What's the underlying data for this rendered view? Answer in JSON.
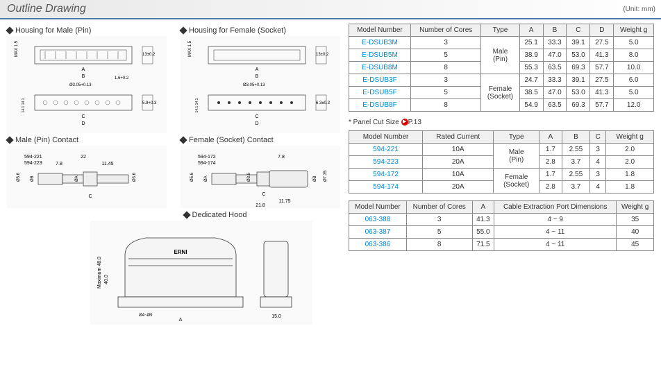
{
  "header": {
    "title": "Outline Drawing",
    "unit": "(Unit: mm)"
  },
  "labels": {
    "housingMale": "Housing for Male (Pin)",
    "housingFemale": "Housing for Female (Socket)",
    "maleContact": "Male (Pin) Contact",
    "femaleContact": "Female (Socket) Contact",
    "hood": "Dedicated Hood"
  },
  "contactRefs": {
    "male": "594-221\n594-223",
    "female": "594-172\n594-174"
  },
  "footnote": {
    "prefix": "* Panel Cut Size ",
    "page": "P.13"
  },
  "table1": {
    "headers": [
      "Model Number",
      "Number of Cores",
      "Type",
      "A",
      "B",
      "C",
      "D",
      "Weight g"
    ],
    "rows": [
      {
        "m": "E-DSUB3M",
        "c": "3",
        "t": "",
        "a": "25.1",
        "b": "33.3",
        "cc": "39.1",
        "d": "27.5",
        "w": "5.0"
      },
      {
        "m": "E-DSUB5M",
        "c": "5",
        "t": "Male (Pin)",
        "a": "38.9",
        "b": "47.0",
        "cc": "53.0",
        "d": "41.3",
        "w": "8.0"
      },
      {
        "m": "E-DSUB8M",
        "c": "8",
        "t": "",
        "a": "55.3",
        "b": "63.5",
        "cc": "69.3",
        "d": "57.7",
        "w": "10.0"
      },
      {
        "m": "E-DSUB3F",
        "c": "3",
        "t": "",
        "a": "24.7",
        "b": "33.3",
        "cc": "39.1",
        "d": "27.5",
        "w": "6.0"
      },
      {
        "m": "E-DSUB5F",
        "c": "5",
        "t": "Female (Socket)",
        "a": "38.5",
        "b": "47.0",
        "cc": "53.0",
        "d": "41.3",
        "w": "5.0"
      },
      {
        "m": "E-DSUB8F",
        "c": "8",
        "t": "",
        "a": "54.9",
        "b": "63.5",
        "cc": "69.3",
        "d": "57.7",
        "w": "12.0"
      }
    ]
  },
  "table2": {
    "headers": [
      "Model Number",
      "Rated Current",
      "Type",
      "A",
      "B",
      "C",
      "Weight g"
    ],
    "rows": [
      {
        "m": "594-221",
        "r": "10A",
        "t": "",
        "a": "1.7",
        "b": "2.55",
        "c": "3",
        "w": "2.0"
      },
      {
        "m": "594-223",
        "r": "20A",
        "t": "Male (Pin)",
        "a": "2.8",
        "b": "3.7",
        "c": "4",
        "w": "2.0"
      },
      {
        "m": "594-172",
        "r": "10A",
        "t": "",
        "a": "1.7",
        "b": "2.55",
        "c": "3",
        "w": "1.8"
      },
      {
        "m": "594-174",
        "r": "20A",
        "t": "Female (Socket)",
        "a": "2.8",
        "b": "3.7",
        "c": "4",
        "w": "1.8"
      }
    ]
  },
  "table3": {
    "headers": [
      "Model Number",
      "Number of Cores",
      "A",
      "Cable Extraction Port Dimensions",
      "Weight g"
    ],
    "rows": [
      {
        "m": "063-388",
        "c": "3",
        "a": "41.3",
        "p": "4 ~ 9",
        "w": "35"
      },
      {
        "m": "063-387",
        "c": "5",
        "a": "55.0",
        "p": "4 ~ 11",
        "w": "40"
      },
      {
        "m": "063-386",
        "c": "8",
        "a": "71.5",
        "p": "4 ~ 11",
        "w": "45"
      }
    ]
  },
  "diagDims": {
    "housing": {
      "d1": "13±0.2",
      "d2": "Ø3.05+0.13",
      "d3": "5.9+0.3",
      "d4": "6.3±0.3",
      "d5": "MAX 1.5",
      "d6": "14.1  14.1",
      "a": "A",
      "b": "B",
      "c": "C",
      "d": "D",
      "t": "1.6+0.2"
    },
    "maleC": {
      "l1": "22",
      "l2": "7.8",
      "l3": "11.45",
      "d1": "Ø5.6",
      "d2": "ØB",
      "d3": "ØA",
      "d4": "Ø3.6",
      "c": "C"
    },
    "femaleC": {
      "l1": "21.8",
      "l2": "7.8",
      "l3": "11.75",
      "d1": "Ø5.6",
      "d2": "ØA",
      "d3": "Ø3.6",
      "d4": "ØB",
      "d5": "Ø7.35",
      "c": "C"
    },
    "hood": {
      "h": "40.0",
      "mh": "Maximum 48.0",
      "a": "A",
      "s1": "Ø4~Ø9",
      "s2": "15.0",
      "brand": "ERNI"
    }
  }
}
